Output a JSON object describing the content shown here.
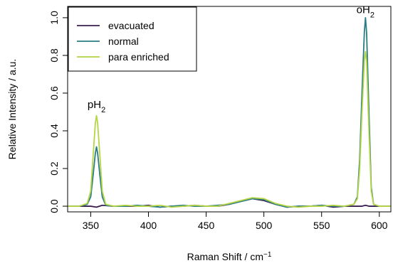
{
  "chart_data": {
    "type": "line",
    "xlabel": "Raman Shift / cm",
    "xlabel_sup": "−1",
    "ylabel": "Relative Intensity / a.u.",
    "xlim": [
      330,
      610
    ],
    "ylim": [
      -0.03,
      1.06
    ],
    "x_ticks": [
      350,
      400,
      450,
      500,
      550,
      600
    ],
    "x_tick_labels": [
      "350",
      "400",
      "450",
      "500",
      "550",
      "600"
    ],
    "y_ticks": [
      0.0,
      0.2,
      0.4,
      0.6,
      0.8,
      1.0
    ],
    "y_tick_labels": [
      "0.0",
      "0.2",
      "0.4",
      "0.6",
      "0.8",
      "1.0"
    ],
    "grid": false,
    "legend_position": "top-left",
    "series": [
      {
        "name": "evacuated",
        "color": "#3b1f4f",
        "x": [
          330,
          340,
          350,
          355,
          360,
          370,
          380,
          390,
          400,
          410,
          420,
          430,
          440,
          450,
          460,
          470,
          480,
          490,
          500,
          510,
          520,
          530,
          540,
          550,
          560,
          570,
          580,
          585,
          588,
          591,
          600,
          610
        ],
        "y": [
          0.0,
          0.0,
          0.0,
          -0.005,
          0.005,
          0.0,
          0.0,
          0.0,
          0.005,
          -0.005,
          0.0,
          0.0,
          0.005,
          0.0,
          0.0,
          0.01,
          0.025,
          0.04,
          0.03,
          0.01,
          -0.005,
          0.0,
          0.0,
          0.005,
          -0.005,
          0.0,
          0.0,
          0.0,
          0.005,
          0.0,
          0.0,
          0.0
        ]
      },
      {
        "name": "normal",
        "color": "#2a7d84",
        "x": [
          330,
          340,
          347,
          350,
          352,
          354,
          355,
          356,
          358,
          360,
          363,
          370,
          380,
          390,
          400,
          410,
          420,
          430,
          440,
          450,
          460,
          470,
          480,
          490,
          500,
          510,
          520,
          530,
          540,
          550,
          560,
          570,
          578,
          581,
          583,
          585,
          587,
          588,
          589,
          591,
          593,
          595,
          600,
          610
        ],
        "y": [
          0.0,
          0.0,
          0.01,
          0.05,
          0.16,
          0.28,
          0.315,
          0.28,
          0.16,
          0.05,
          0.005,
          0.0,
          0.0,
          0.005,
          0.0,
          -0.005,
          0.0,
          0.005,
          0.0,
          0.0,
          0.005,
          0.01,
          0.025,
          0.04,
          0.035,
          0.01,
          -0.005,
          0.0,
          0.0,
          0.005,
          0.0,
          0.0,
          0.01,
          0.05,
          0.25,
          0.6,
          0.92,
          1.0,
          0.92,
          0.5,
          0.1,
          0.01,
          0.0,
          0.0
        ]
      },
      {
        "name": "para enriched",
        "color": "#b5d544",
        "x": [
          330,
          340,
          347,
          350,
          352,
          354,
          355,
          356,
          358,
          360,
          363,
          370,
          380,
          390,
          400,
          410,
          420,
          430,
          440,
          450,
          460,
          470,
          480,
          490,
          500,
          510,
          520,
          530,
          540,
          550,
          560,
          570,
          578,
          581,
          583,
          585,
          587,
          588,
          589,
          591,
          593,
          595,
          600,
          610
        ],
        "y": [
          0.0,
          0.0,
          0.015,
          0.08,
          0.26,
          0.44,
          0.48,
          0.44,
          0.26,
          0.08,
          0.01,
          0.0,
          0.005,
          0.0,
          0.0,
          0.005,
          -0.005,
          0.0,
          0.005,
          0.0,
          0.0,
          0.015,
          0.03,
          0.045,
          0.04,
          0.015,
          0.0,
          -0.005,
          0.0,
          0.0,
          0.005,
          0.0,
          0.01,
          0.04,
          0.2,
          0.5,
          0.77,
          0.82,
          0.77,
          0.4,
          0.08,
          0.01,
          0.0,
          0.0
        ]
      }
    ],
    "annotations": [
      {
        "base": "pH",
        "sub": "2",
        "x": 355,
        "y": 0.52
      },
      {
        "base": "oH",
        "sub": "2",
        "x": 588,
        "y": 1.025
      }
    ]
  }
}
